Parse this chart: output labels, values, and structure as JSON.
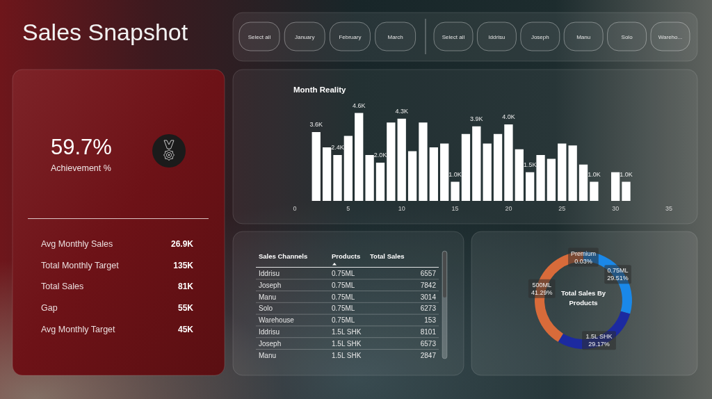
{
  "chart_data": [
    {
      "type": "other",
      "title": "Sales Snapshot"
    },
    {
      "type": "other",
      "categories": [
        "Select all",
        "January",
        "February",
        "March"
      ]
    },
    {
      "type": "other",
      "categories": [
        "Select all",
        "Iddrisu",
        "Joseph",
        "Manu",
        "Solo",
        "Wareho..."
      ]
    },
    {
      "type": "other",
      "annotations": [
        "59.7%",
        "Achievement %"
      ],
      "categories": [
        "Avg Monthly Sales",
        "Total Monthly Target",
        "Total Sales",
        "Gap",
        "Avg Monthly Target"
      ],
      "value_labels": [
        "26.9K",
        "135K",
        "81K",
        "55K",
        "45K"
      ]
    },
    {
      "type": "bar",
      "title": "Month Reality",
      "x": [
        2,
        3,
        4,
        5,
        6,
        7,
        8,
        9,
        10,
        11,
        12,
        13,
        14,
        15,
        16,
        17,
        18,
        19,
        20,
        21,
        22,
        23,
        24,
        25,
        26,
        27,
        28,
        30,
        31
      ],
      "values": [
        3600,
        2800,
        2400,
        3400,
        4600,
        2400,
        2000,
        4100,
        4300,
        2600,
        4100,
        2800,
        3000,
        1000,
        3500,
        3900,
        3000,
        3500,
        4000,
        2700,
        1500,
        2400,
        2200,
        3000,
        2900,
        1900,
        1000,
        1500,
        1000
      ],
      "value_labels": [
        "3.6K",
        null,
        "2.4K",
        null,
        "4.6K",
        null,
        "2.0K",
        null,
        "4.3K",
        null,
        null,
        null,
        null,
        "1.0K",
        null,
        "3.9K",
        null,
        null,
        "4.0K",
        null,
        "1.5K",
        null,
        null,
        null,
        null,
        null,
        "1.0K",
        null,
        "1.0K"
      ],
      "color": "#ffffff",
      "xlim": [
        0,
        35
      ],
      "xticks": [
        0,
        5,
        10,
        15,
        20,
        25,
        30,
        35
      ],
      "tick_labels": "x"
    },
    {
      "type": "other",
      "categories": [
        "Sales Channels",
        "Products",
        "Total Sales"
      ],
      "cell_labels": [
        [
          "Iddrisu",
          "0.75ML",
          "6557"
        ],
        [
          "Joseph",
          "0.75ML",
          "7842"
        ],
        [
          "Manu",
          "0.75ML",
          "3014"
        ],
        [
          "Solo",
          "0.75ML",
          "6273"
        ],
        [
          "Warehouse",
          "0.75ML",
          "153"
        ],
        [
          "Iddrisu",
          "1.5L SHK",
          "8101"
        ],
        [
          "Joseph",
          "1.5L SHK",
          "6573"
        ],
        [
          "Manu",
          "1.5L SHK",
          "2847"
        ]
      ]
    },
    {
      "type": "donut",
      "title": "Total Sales By Products",
      "categories": [
        "0.75ML",
        "1.5L SHK",
        "500ML",
        "Premium"
      ],
      "values": [
        29.51,
        29.17,
        41.29,
        0.03
      ],
      "value_labels": [
        "29.51%",
        "29.17%",
        "41.29%",
        "0.03%"
      ],
      "colors": [
        "#1a88e8",
        "#1c2aa0",
        "#d86b3a",
        "#6b007b"
      ]
    }
  ]
}
